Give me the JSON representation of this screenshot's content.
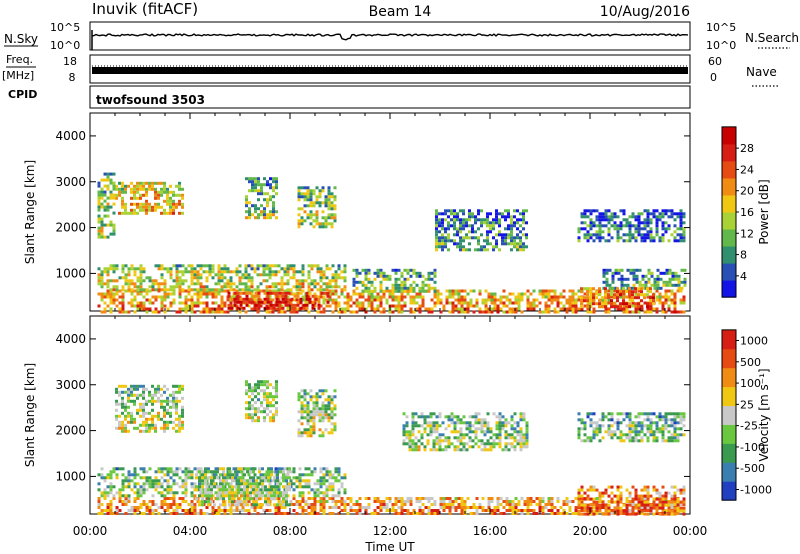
{
  "header": {
    "site": "Inuvik (fitACF)",
    "beam": "Beam 14",
    "date": "10/Aug/2016"
  },
  "strips": {
    "nsky": {
      "label": "N.Sky",
      "scale_top": "10^5",
      "scale_bottom": "10^0",
      "right_label": "N.Search",
      "right_top": "10^5",
      "right_bottom": "10^0"
    },
    "freq": {
      "label_top": "Freq.",
      "label_unit": "[MHz]",
      "left_top": "18",
      "left_bottom": "8",
      "right_top": "60",
      "right_bottom": "0",
      "right_label": "Nave"
    },
    "cpid": {
      "label": "CPID",
      "program": "twofsound 3503"
    }
  },
  "x_axis": {
    "title": "Time UT",
    "ticks": [
      "00:00",
      "04:00",
      "08:00",
      "12:00",
      "16:00",
      "20:00",
      "00:00"
    ]
  },
  "chart_data": [
    {
      "type": "heatmap",
      "parameter": "Power",
      "ylabel": "Slant Range [km]",
      "xlabel": "Time UT",
      "xlim": [
        0,
        24
      ],
      "ylim": [
        180,
        4500
      ],
      "yticks": [
        "1000",
        "2000",
        "3000",
        "4000"
      ],
      "colorbar": {
        "label": "Power [dB]",
        "ticks": [
          "4",
          "8",
          "12",
          "16",
          "20",
          "24",
          "28"
        ],
        "range": [
          0,
          32
        ],
        "colors": [
          "#1414e6",
          "#2850b4",
          "#2f8f6e",
          "#62b84a",
          "#a8d235",
          "#f0c814",
          "#f08c14",
          "#e64b14",
          "#d71e14",
          "#c80000"
        ]
      },
      "echo_regions": [
        {
          "t": [
            0.3,
            23.8
          ],
          "r": [
            180,
            650
          ],
          "level": 0.62
        },
        {
          "t": [
            0.3,
            10.2
          ],
          "r": [
            650,
            1200
          ],
          "level": 0.45
        },
        {
          "t": [
            5.5,
            9.5
          ],
          "r": [
            220,
            600
          ],
          "level": 0.85
        },
        {
          "t": [
            1.0,
            3.7
          ],
          "r": [
            2300,
            3000
          ],
          "level": 0.55
        },
        {
          "t": [
            0.3,
            1.0
          ],
          "r": [
            1800,
            3200
          ],
          "level": 0.4
        },
        {
          "t": [
            8.3,
            9.8
          ],
          "r": [
            2000,
            2900
          ],
          "level": 0.4
        },
        {
          "t": [
            6.2,
            7.5
          ],
          "r": [
            2200,
            3100
          ],
          "level": 0.35
        },
        {
          "t": [
            10.5,
            13.8
          ],
          "r": [
            600,
            1100
          ],
          "level": 0.35
        },
        {
          "t": [
            13.8,
            17.5
          ],
          "r": [
            1500,
            2400
          ],
          "level": 0.25
        },
        {
          "t": [
            19.5,
            23.8
          ],
          "r": [
            1700,
            2400
          ],
          "level": 0.2
        },
        {
          "t": [
            20.5,
            23.8
          ],
          "r": [
            700,
            1100
          ],
          "level": 0.3
        },
        {
          "t": [
            19.6,
            22.5
          ],
          "r": [
            250,
            700
          ],
          "level": 0.72
        }
      ]
    },
    {
      "type": "heatmap",
      "parameter": "Velocity",
      "ylabel": "Slant Range [km]",
      "xlabel": "Time UT",
      "xlim": [
        0,
        24
      ],
      "ylim": [
        180,
        4500
      ],
      "yticks": [
        "1000",
        "2000",
        "3000",
        "4000"
      ],
      "colorbar": {
        "label": "Velocity [m s⁻¹]",
        "ticks": [
          "1000",
          "500",
          "100",
          "25",
          "-25",
          "-100",
          "-500",
          "-1000"
        ],
        "colors": [
          "#2040c0",
          "#3a7fb0",
          "#3a9a50",
          "#6ac840",
          "#c8c8c8",
          "#f0c814",
          "#f08c14",
          "#e64b14",
          "#d71e14"
        ]
      },
      "echo_regions": [
        {
          "t": [
            0.3,
            23.8
          ],
          "r": [
            180,
            550
          ],
          "level": 0.7
        },
        {
          "t": [
            0.3,
            10.2
          ],
          "r": [
            550,
            1200
          ],
          "level": 0.4
        },
        {
          "t": [
            4.2,
            8.0
          ],
          "r": [
            350,
            1200
          ],
          "level": 0.45
        },
        {
          "t": [
            1.0,
            3.7
          ],
          "r": [
            2000,
            3000
          ],
          "level": 0.45
        },
        {
          "t": [
            6.2,
            7.5
          ],
          "r": [
            2200,
            3100
          ],
          "level": 0.45
        },
        {
          "t": [
            8.3,
            9.8
          ],
          "r": [
            1900,
            2900
          ],
          "level": 0.45
        },
        {
          "t": [
            12.5,
            17.5
          ],
          "r": [
            1600,
            2400
          ],
          "level": 0.4
        },
        {
          "t": [
            19.5,
            23.8
          ],
          "r": [
            180,
            800
          ],
          "level": 0.78
        },
        {
          "t": [
            19.5,
            23.8
          ],
          "r": [
            1800,
            2400
          ],
          "level": 0.35
        }
      ]
    }
  ]
}
